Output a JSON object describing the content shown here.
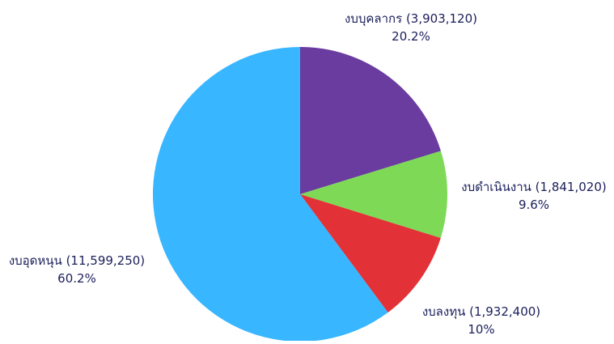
{
  "chart_data": {
    "type": "pie",
    "title": "",
    "slices": [
      {
        "label": "งบบุคลากร",
        "value": 3903120,
        "value_text": "3,903,120",
        "percent_text": "20.2%",
        "color": "#6a3ca0"
      },
      {
        "label": "งบดำเนินงาน",
        "value": 1841020,
        "value_text": "1,841,020",
        "percent_text": "9.6%",
        "color": "#7ed957"
      },
      {
        "label": "งบลงทุน",
        "value": 1932400,
        "value_text": "1,932,400",
        "percent_text": "10%",
        "color": "#e33237"
      },
      {
        "label": "งบอุดหนุน",
        "value": 11599250,
        "value_text": "11,599,250",
        "percent_text": "60.2%",
        "color": "#38b6ff"
      }
    ],
    "start_angle": "top",
    "direction": "clockwise",
    "legend": "none"
  }
}
